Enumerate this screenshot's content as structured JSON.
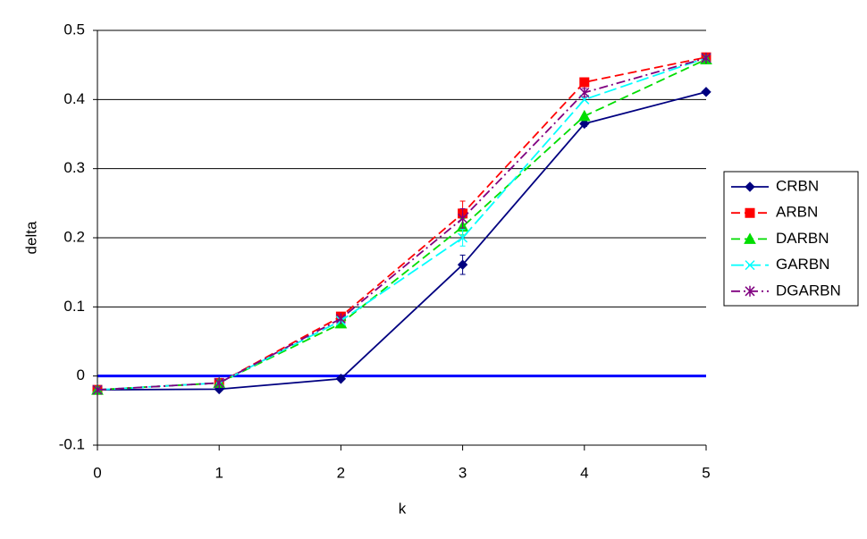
{
  "chart_data": {
    "type": "line",
    "x_label": "k",
    "y_label": "delta",
    "x": [
      0,
      1,
      2,
      3,
      4,
      5
    ],
    "xlim": [
      0,
      5
    ],
    "xticks": [
      0,
      1,
      2,
      3,
      4,
      5
    ],
    "ylim": [
      -0.1,
      0.5
    ],
    "yticks": [
      -0.1,
      0,
      0.1,
      0.2,
      0.3,
      0.4,
      0.5
    ],
    "grid": true,
    "zero_line_color": "#0000ff",
    "legend": "right",
    "series": [
      {
        "name": "CRBN",
        "color": "#000080",
        "dash": "solid",
        "marker": "diamond",
        "values": [
          -0.02,
          -0.019,
          -0.004,
          0.161,
          0.365,
          0.411
        ],
        "errors": [
          null,
          null,
          null,
          0.014,
          0.004,
          null
        ]
      },
      {
        "name": "ARBN",
        "color": "#ff0000",
        "dash": "dash",
        "marker": "square",
        "values": [
          -0.02,
          -0.01,
          0.086,
          0.235,
          0.425,
          0.461
        ],
        "errors": [
          null,
          null,
          null,
          0.018,
          null,
          null
        ]
      },
      {
        "name": "DARBN",
        "color": "#00dd00",
        "dash": "dash",
        "marker": "triangle",
        "values": [
          -0.02,
          -0.01,
          0.076,
          0.216,
          0.376,
          0.458
        ],
        "errors": [
          null,
          null,
          null,
          0.012,
          null,
          null
        ]
      },
      {
        "name": "GARBN",
        "color": "#00ffff",
        "dash": "longdash",
        "marker": "x",
        "values": [
          -0.02,
          -0.01,
          0.08,
          0.2,
          0.4,
          0.46
        ],
        "errors": [
          null,
          null,
          null,
          0.012,
          null,
          null
        ]
      },
      {
        "name": "DGARBN",
        "color": "#800080",
        "dash": "dashdot",
        "marker": "star",
        "values": [
          -0.02,
          -0.01,
          0.083,
          0.228,
          0.41,
          0.46
        ],
        "errors": [
          null,
          null,
          null,
          0.014,
          0.006,
          null
        ]
      }
    ]
  }
}
